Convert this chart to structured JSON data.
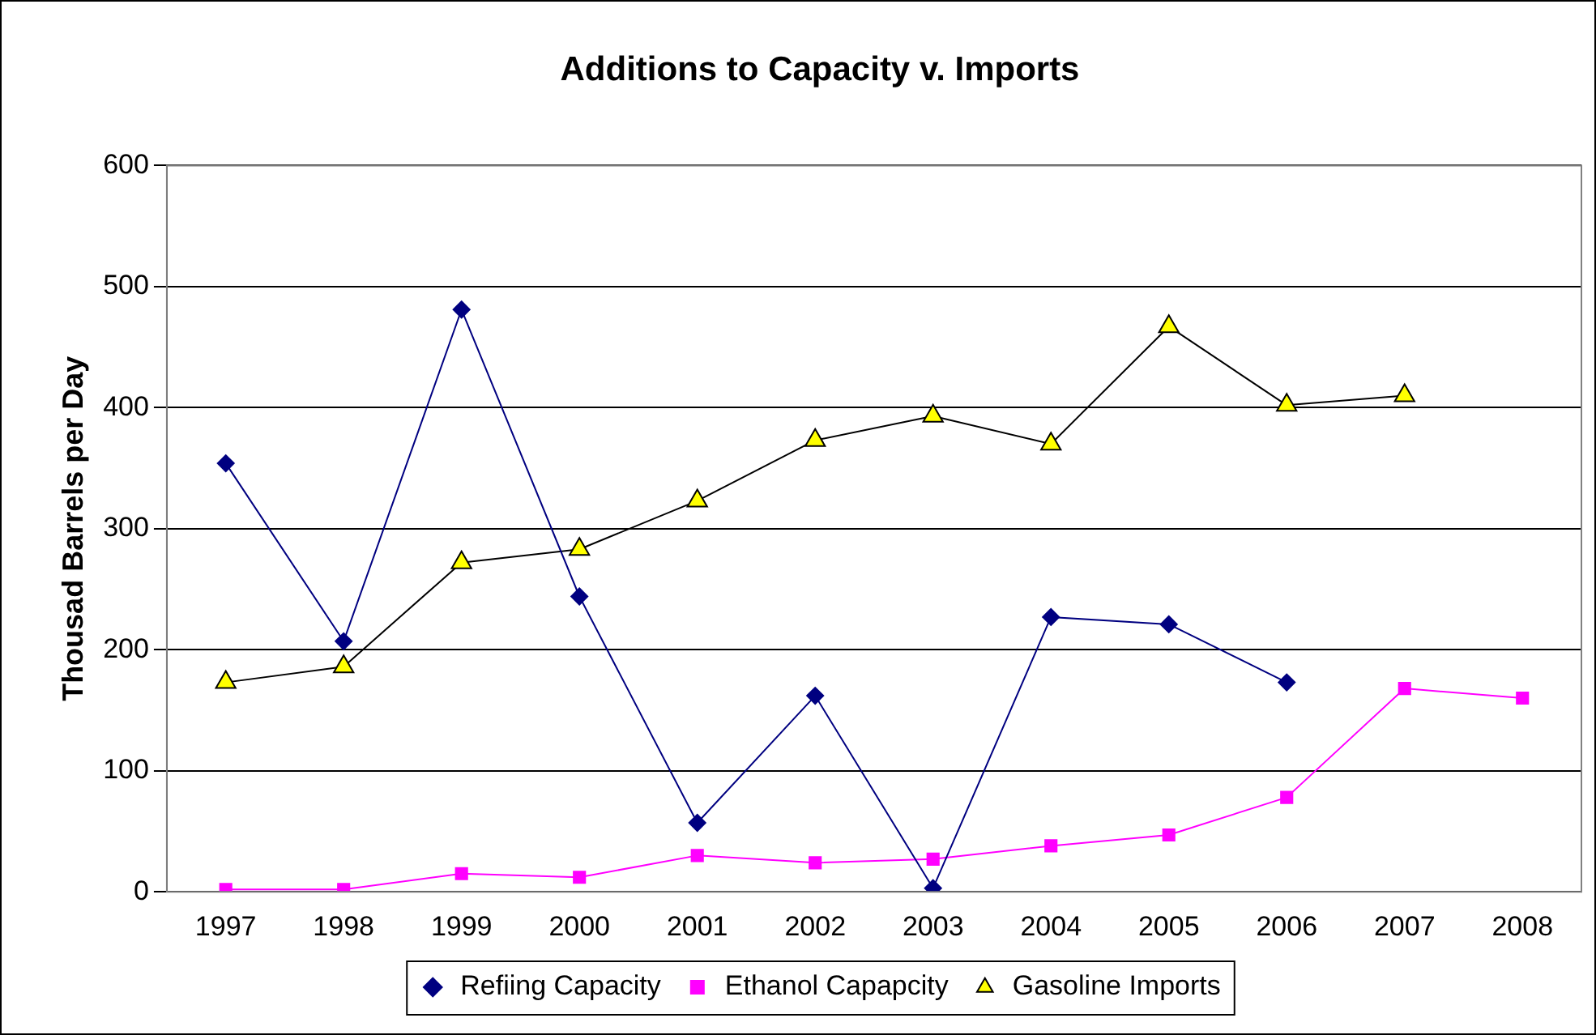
{
  "chart_data": {
    "type": "line",
    "title": "Additions to Capacity v. Imports",
    "ylabel": "Thousad Barrels per Day",
    "categories": [
      "1997",
      "1998",
      "1999",
      "2000",
      "2001",
      "2002",
      "2003",
      "2004",
      "2005",
      "2006",
      "2007",
      "2008"
    ],
    "series": [
      {
        "name": "Refiing Capacity",
        "color": "#000080",
        "marker": "diamond",
        "values": [
          354,
          207,
          481,
          244,
          57,
          162,
          3,
          227,
          221,
          173,
          null,
          null
        ]
      },
      {
        "name": "Ethanol Capapcity",
        "color": "#ff00ff",
        "marker": "square",
        "values": [
          2,
          2,
          15,
          12,
          30,
          24,
          27,
          38,
          47,
          78,
          168,
          160
        ]
      },
      {
        "name": "Gasoline Imports",
        "color": "#000000",
        "marker": "triangle",
        "values": [
          173,
          186,
          272,
          283,
          323,
          373,
          393,
          370,
          467,
          402,
          410,
          null
        ]
      }
    ],
    "ylim": [
      0,
      600
    ],
    "yticks": [
      0,
      100,
      200,
      300,
      400,
      500,
      600
    ],
    "grid": "y",
    "legend": "bottom",
    "line_style": "solid"
  }
}
